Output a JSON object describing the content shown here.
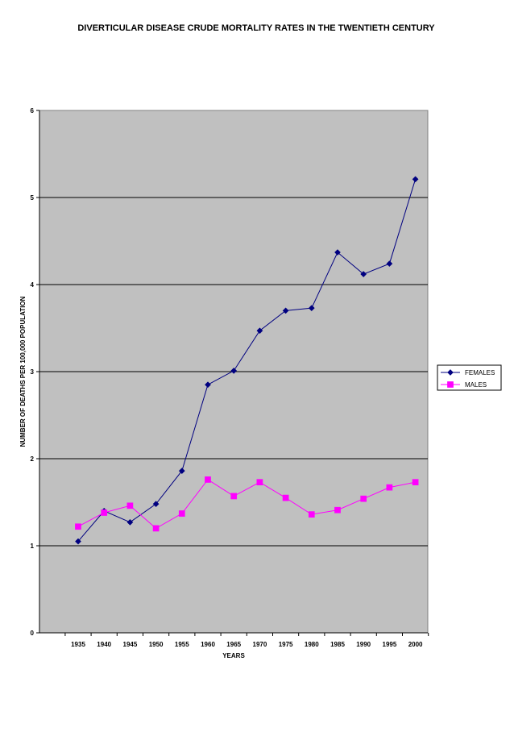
{
  "chart_data": {
    "type": "line",
    "title": "DIVERTICULAR DISEASE CRUDE MORTALITY RATES IN THE TWENTIETH CENTURY",
    "xlabel": "YEARS",
    "ylabel": "NUMBER OF DEATHS PER 100,000 POPULATION",
    "categories": [
      "1935",
      "1940",
      "1945",
      "1950",
      "1955",
      "1960",
      "1965",
      "1970",
      "1975",
      "1980",
      "1985",
      "1990",
      "1995",
      "2000"
    ],
    "ylim": [
      0,
      6
    ],
    "yticks": [
      "0",
      "1",
      "2",
      "3",
      "4",
      "5",
      "6"
    ],
    "grid": true,
    "legend": "right",
    "plot_background": "#c0c0c0",
    "series": [
      {
        "name": "FEMALES",
        "color": "#000080",
        "marker": "diamond",
        "values": [
          1.05,
          1.4,
          1.27,
          1.48,
          1.86,
          2.85,
          3.01,
          3.47,
          3.7,
          3.73,
          4.37,
          4.12,
          4.24,
          5.21
        ]
      },
      {
        "name": "MALES",
        "color": "#ff00ff",
        "marker": "square",
        "values": [
          1.22,
          1.38,
          1.46,
          1.2,
          1.37,
          1.76,
          1.57,
          1.73,
          1.55,
          1.36,
          1.41,
          1.54,
          1.67,
          1.73
        ]
      }
    ]
  }
}
